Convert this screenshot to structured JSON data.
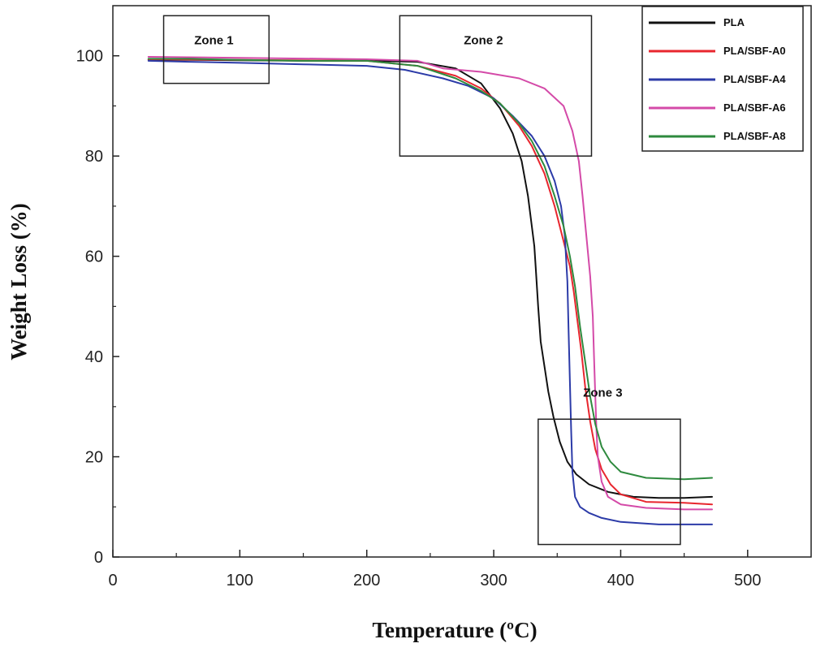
{
  "chart_data": {
    "type": "line",
    "title": "",
    "xlabel": "Temperature (ºC)",
    "ylabel": "Weight Loss (%)",
    "xlim": [
      0,
      550
    ],
    "ylim": [
      0,
      110
    ],
    "xticks": [
      0,
      100,
      200,
      300,
      400,
      500
    ],
    "yticks": [
      0,
      20,
      40,
      60,
      80,
      100
    ],
    "legend_position": "top-right",
    "series": [
      {
        "name": "PLA",
        "color": "#111111",
        "x": [
          28,
          60,
          100,
          150,
          200,
          240,
          270,
          290,
          305,
          315,
          322,
          327,
          330,
          332,
          333,
          335,
          337,
          340,
          343,
          347,
          352,
          358,
          365,
          375,
          390,
          410,
          430,
          450,
          472
        ],
        "y": [
          99.2,
          99.2,
          99.1,
          99.0,
          99.0,
          98.8,
          97.5,
          94.5,
          89.5,
          84.5,
          79,
          72,
          66,
          62,
          58,
          50,
          43,
          38,
          33,
          28,
          23,
          19,
          16.5,
          14.5,
          13,
          12,
          11.8,
          11.8,
          12
        ]
      },
      {
        "name": "PLA/SBF-A0",
        "color": "#e8262e",
        "x": [
          28,
          100,
          200,
          240,
          270,
          290,
          305,
          320,
          330,
          340,
          348,
          355,
          360,
          363,
          366,
          369,
          372,
          376,
          380,
          385,
          392,
          400,
          420,
          450,
          472
        ],
        "y": [
          99.3,
          99.2,
          99.0,
          98.0,
          96.0,
          93.5,
          90.5,
          86.0,
          82.0,
          76.5,
          70.0,
          63.0,
          58.0,
          53.0,
          47.0,
          41.0,
          34.0,
          27.0,
          21.5,
          17.5,
          14.5,
          12.5,
          11.0,
          10.8,
          10.5
        ]
      },
      {
        "name": "PLA/SBF-A4",
        "color": "#2c3ba8",
        "x": [
          28,
          60,
          100,
          150,
          200,
          230,
          260,
          280,
          300,
          315,
          330,
          340,
          348,
          353,
          356,
          358,
          359,
          360,
          361,
          362,
          364,
          368,
          375,
          385,
          400,
          430,
          472
        ],
        "y": [
          99.0,
          98.8,
          98.6,
          98.3,
          98.0,
          97.2,
          95.5,
          94.0,
          91.5,
          88.0,
          84.0,
          80.0,
          75.0,
          70.0,
          64.0,
          55.0,
          45.0,
          35.0,
          25.0,
          17.0,
          12.0,
          10.0,
          8.8,
          7.8,
          7.0,
          6.5,
          6.5
        ]
      },
      {
        "name": "PLA/SBF-A6",
        "color": "#d44aa8",
        "x": [
          28,
          100,
          200,
          240,
          260,
          290,
          320,
          340,
          355,
          362,
          367,
          370,
          373,
          376,
          378,
          379,
          380,
          381,
          382,
          385,
          390,
          400,
          420,
          450,
          472
        ],
        "y": [
          99.8,
          99.6,
          99.3,
          99.0,
          97.5,
          96.8,
          95.5,
          93.5,
          90.0,
          85.0,
          79.0,
          72.0,
          64.0,
          56.0,
          48.0,
          40.0,
          32.0,
          25.0,
          20.0,
          15.0,
          12.0,
          10.5,
          9.8,
          9.5,
          9.5
        ]
      },
      {
        "name": "PLA/SBF-A8",
        "color": "#2e8a3e",
        "x": [
          28,
          60,
          100,
          150,
          200,
          240,
          270,
          290,
          305,
          320,
          330,
          340,
          348,
          355,
          360,
          364,
          368,
          372,
          376,
          380,
          385,
          392,
          400,
          420,
          450,
          472
        ],
        "y": [
          99.4,
          99.4,
          99.2,
          99.0,
          99.0,
          98.0,
          95.5,
          93.0,
          90.5,
          86.5,
          83.0,
          78.0,
          72.0,
          66.0,
          60.0,
          54.0,
          46.0,
          39.0,
          32.0,
          26.5,
          22.0,
          19.0,
          17.0,
          15.8,
          15.5,
          15.8
        ]
      }
    ],
    "annotations": [
      {
        "label": "Zone 1",
        "x_range": [
          40,
          123
        ],
        "y_range": [
          94.5,
          108
        ]
      },
      {
        "label": "Zone 2",
        "x_range": [
          226,
          377
        ],
        "y_range": [
          80,
          108
        ]
      },
      {
        "label": "Zone 3",
        "x_range": [
          335,
          447
        ],
        "y_range": [
          2.5,
          27.5
        ]
      }
    ]
  }
}
